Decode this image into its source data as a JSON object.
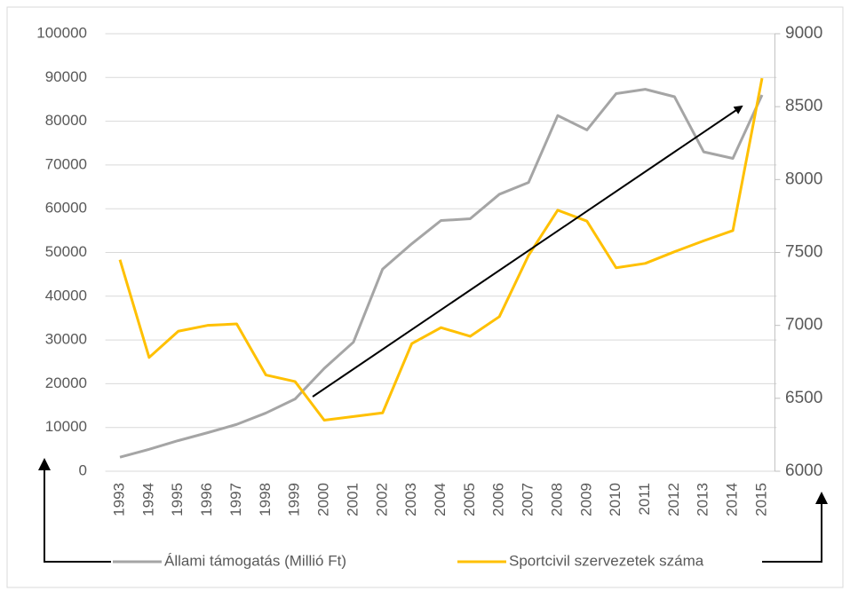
{
  "chart_data": {
    "type": "line",
    "categories": [
      "1993",
      "1994",
      "1995",
      "1996",
      "1997",
      "1998",
      "1999",
      "2000",
      "2001",
      "2002",
      "2003",
      "2004",
      "2005",
      "2006",
      "2007",
      "2008",
      "2009",
      "2010",
      "2011",
      "2012",
      "2013",
      "2014",
      "2015"
    ],
    "series": [
      {
        "name": "Állami támogatás (Millió Ft)",
        "color": "#a5a5a5",
        "axis": "y",
        "values": [
          3200,
          5000,
          7000,
          8800,
          10700,
          13300,
          16500,
          23500,
          29500,
          46200,
          52000,
          57300,
          57700,
          63300,
          66000,
          81300,
          78000,
          86300,
          87300,
          85600,
          73000,
          71500,
          86000
        ]
      },
      {
        "name": "Sportcivil szervezetek száma",
        "color": "#ffc000",
        "axis": "y2",
        "values": [
          7450,
          6780,
          6960,
          7000,
          7010,
          6660,
          6615,
          6350,
          6375,
          6400,
          6875,
          6985,
          6925,
          7060,
          7480,
          7790,
          7715,
          7395,
          7425,
          7505,
          7580,
          7650,
          8695
        ]
      }
    ],
    "ylim": [
      0,
      100000
    ],
    "yticks": [
      0,
      10000,
      20000,
      30000,
      40000,
      50000,
      60000,
      70000,
      80000,
      90000,
      100000
    ],
    "y2lim": [
      6000,
      9000
    ],
    "y2ticks": [
      6000,
      6500,
      7000,
      7500,
      8000,
      8500,
      9000
    ],
    "grid": true,
    "legend": "bottom"
  }
}
